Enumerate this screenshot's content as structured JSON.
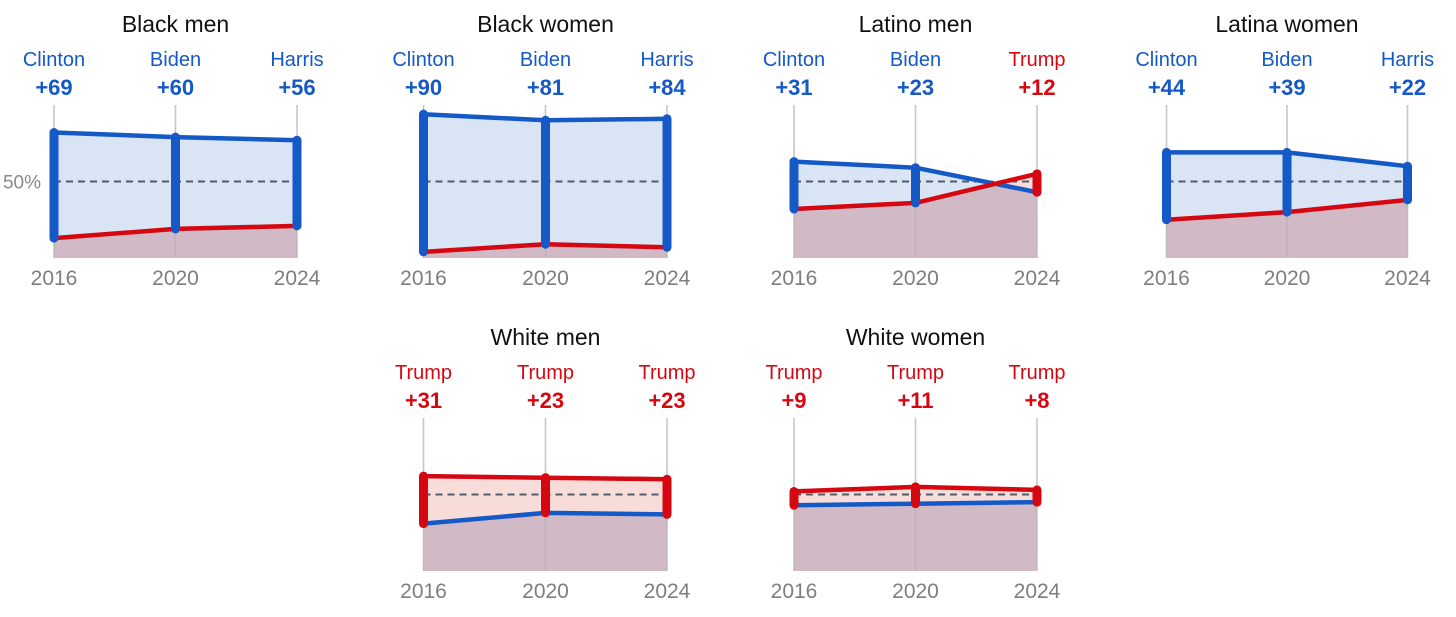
{
  "page": {
    "background": "#ffffff",
    "y_axis_label": "50%"
  },
  "colors": {
    "dem_blue": "#1459c6",
    "rep_red": "#d50812",
    "fill_dem_lead": "#d9e4f5",
    "fill_rep_lead": "#f8dcd9",
    "fill_base_overlap": "#d2b9c6",
    "year_tick_gray": "#b3b3b3",
    "dash_gray": "#4f5d6b",
    "title_text": "#111111",
    "year_text": "#7e7e7e",
    "axis_label_gray": "#8a8a8a"
  },
  "chart_data": [
    {
      "type": "area",
      "title": "Black men",
      "row": 0,
      "col": 0,
      "show_axis_label": true,
      "categories": [
        "2016",
        "2020",
        "2024"
      ],
      "ylim": [
        0,
        100
      ],
      "reference_line": 50,
      "series": [
        {
          "name": "Democratic candidate",
          "party": "dem",
          "values": [
            82,
            79,
            77
          ]
        },
        {
          "name": "Republican candidate",
          "party": "rep",
          "values": [
            13,
            19,
            21
          ]
        }
      ],
      "annotations": [
        {
          "candidate": "Clinton",
          "margin": "+69",
          "party": "dem"
        },
        {
          "candidate": "Biden",
          "margin": "+60",
          "party": "dem"
        },
        {
          "candidate": "Harris",
          "margin": "+56",
          "party": "dem"
        }
      ]
    },
    {
      "type": "area",
      "title": "Black women",
      "row": 0,
      "col": 1,
      "show_axis_label": false,
      "categories": [
        "2016",
        "2020",
        "2024"
      ],
      "ylim": [
        0,
        100
      ],
      "reference_line": 50,
      "series": [
        {
          "name": "Democratic candidate",
          "party": "dem",
          "values": [
            94,
            90,
            91
          ]
        },
        {
          "name": "Republican candidate",
          "party": "rep",
          "values": [
            4,
            9,
            7
          ]
        }
      ],
      "annotations": [
        {
          "candidate": "Clinton",
          "margin": "+90",
          "party": "dem"
        },
        {
          "candidate": "Biden",
          "margin": "+81",
          "party": "dem"
        },
        {
          "candidate": "Harris",
          "margin": "+84",
          "party": "dem"
        }
      ]
    },
    {
      "type": "area",
      "title": "Latino men",
      "row": 0,
      "col": 2,
      "show_axis_label": false,
      "categories": [
        "2016",
        "2020",
        "2024"
      ],
      "ylim": [
        0,
        100
      ],
      "reference_line": 50,
      "series": [
        {
          "name": "Democratic candidate",
          "party": "dem",
          "values": [
            63,
            59,
            43
          ]
        },
        {
          "name": "Republican candidate",
          "party": "rep",
          "values": [
            32,
            36,
            55
          ]
        }
      ],
      "annotations": [
        {
          "candidate": "Clinton",
          "margin": "+31",
          "party": "dem"
        },
        {
          "candidate": "Biden",
          "margin": "+23",
          "party": "dem"
        },
        {
          "candidate": "Trump",
          "margin": "+12",
          "party": "rep"
        }
      ]
    },
    {
      "type": "area",
      "title": "Latina women",
      "row": 0,
      "col": 3,
      "show_axis_label": false,
      "categories": [
        "2016",
        "2020",
        "2024"
      ],
      "ylim": [
        0,
        100
      ],
      "reference_line": 50,
      "series": [
        {
          "name": "Democratic candidate",
          "party": "dem",
          "values": [
            69,
            69,
            60
          ]
        },
        {
          "name": "Republican candidate",
          "party": "rep",
          "values": [
            25,
            30,
            38
          ]
        }
      ],
      "annotations": [
        {
          "candidate": "Clinton",
          "margin": "+44",
          "party": "dem"
        },
        {
          "candidate": "Biden",
          "margin": "+39",
          "party": "dem"
        },
        {
          "candidate": "Harris",
          "margin": "+22",
          "party": "dem"
        }
      ]
    },
    {
      "type": "area",
      "title": "White men",
      "row": 1,
      "col": 1,
      "show_axis_label": false,
      "categories": [
        "2016",
        "2020",
        "2024"
      ],
      "ylim": [
        0,
        100
      ],
      "reference_line": 50,
      "series": [
        {
          "name": "Democratic candidate",
          "party": "dem",
          "values": [
            31,
            38,
            37
          ]
        },
        {
          "name": "Republican candidate",
          "party": "rep",
          "values": [
            62,
            61,
            60
          ]
        }
      ],
      "annotations": [
        {
          "candidate": "Trump",
          "margin": "+31",
          "party": "rep"
        },
        {
          "candidate": "Trump",
          "margin": "+23",
          "party": "rep"
        },
        {
          "candidate": "Trump",
          "margin": "+23",
          "party": "rep"
        }
      ]
    },
    {
      "type": "area",
      "title": "White women",
      "row": 1,
      "col": 2,
      "show_axis_label": false,
      "categories": [
        "2016",
        "2020",
        "2024"
      ],
      "ylim": [
        0,
        100
      ],
      "reference_line": 50,
      "series": [
        {
          "name": "Democratic candidate",
          "party": "dem",
          "values": [
            43,
            44,
            45
          ]
        },
        {
          "name": "Republican candidate",
          "party": "rep",
          "values": [
            52,
            55,
            53
          ]
        }
      ],
      "annotations": [
        {
          "candidate": "Trump",
          "margin": "+9",
          "party": "rep"
        },
        {
          "candidate": "Trump",
          "margin": "+11",
          "party": "rep"
        },
        {
          "candidate": "Trump",
          "margin": "+8",
          "party": "rep"
        }
      ]
    }
  ]
}
